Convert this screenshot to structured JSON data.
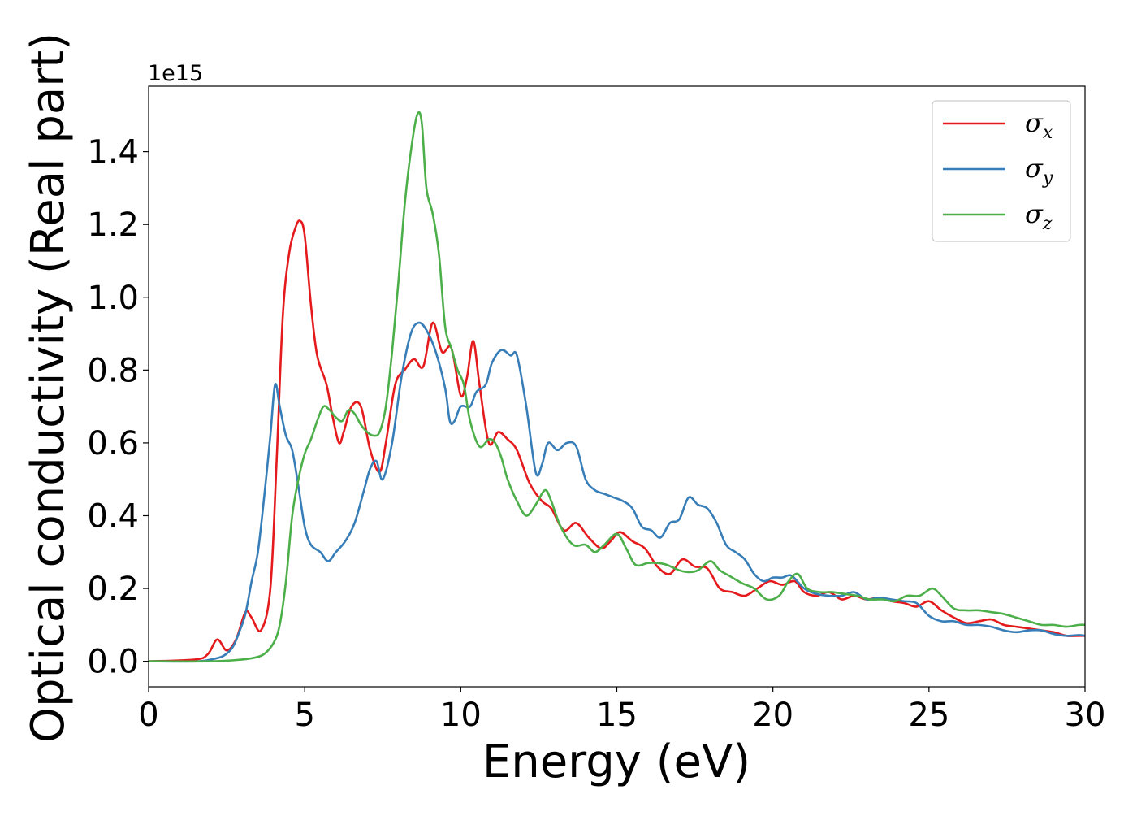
{
  "chart_data": {
    "type": "line",
    "xlabel": "Energy (eV)",
    "ylabel": "Optical conductivity (Real part)",
    "y_offset_label": "1e15",
    "xlim": [
      0,
      30
    ],
    "ylim": [
      -0.07,
      1.58
    ],
    "x_ticks": [
      0,
      5,
      10,
      15,
      20,
      25,
      30
    ],
    "y_ticks": [
      0.0,
      0.2,
      0.4,
      0.6,
      0.8,
      1.0,
      1.2,
      1.4
    ],
    "y_tick_labels": [
      "0.0",
      "0.2",
      "0.4",
      "0.6",
      "0.8",
      "1.0",
      "1.2",
      "1.4"
    ],
    "grid": false,
    "legend_position": "top-right",
    "series": [
      {
        "name": "σx",
        "symbol": "σ",
        "subscript": "x",
        "color": "#e41a1c",
        "x": [
          0,
          1.5,
          1.9,
          2.2,
          2.5,
          2.8,
          3.1,
          3.3,
          3.6,
          3.9,
          4.1,
          4.3,
          4.5,
          4.7,
          4.85,
          5.0,
          5.2,
          5.4,
          5.7,
          5.9,
          6.1,
          6.25,
          6.5,
          6.8,
          7.1,
          7.4,
          7.6,
          7.9,
          8.2,
          8.5,
          8.8,
          9.1,
          9.4,
          9.7,
          10.0,
          10.2,
          10.4,
          10.6,
          10.9,
          11.2,
          11.5,
          11.8,
          12.2,
          12.6,
          12.9,
          13.3,
          13.7,
          14.1,
          14.5,
          14.8,
          15.1,
          15.5,
          15.9,
          16.3,
          16.7,
          17.1,
          17.5,
          17.9,
          18.3,
          18.7,
          19.1,
          19.5,
          19.9,
          20.3,
          20.7,
          21.0,
          21.4,
          21.8,
          22.2,
          22.6,
          23.0,
          23.4,
          23.8,
          24.2,
          24.6,
          25.0,
          25.4,
          25.8,
          26.2,
          26.6,
          27.0,
          27.4,
          27.8,
          28.2,
          28.6,
          29.0,
          29.4,
          29.8,
          30.0
        ],
        "values": [
          0.0,
          0.005,
          0.02,
          0.06,
          0.03,
          0.06,
          0.135,
          0.12,
          0.085,
          0.2,
          0.55,
          0.95,
          1.12,
          1.19,
          1.21,
          1.17,
          0.98,
          0.84,
          0.76,
          0.67,
          0.6,
          0.63,
          0.7,
          0.7,
          0.58,
          0.52,
          0.6,
          0.76,
          0.8,
          0.83,
          0.81,
          0.93,
          0.85,
          0.86,
          0.73,
          0.78,
          0.88,
          0.76,
          0.6,
          0.63,
          0.61,
          0.58,
          0.49,
          0.44,
          0.42,
          0.36,
          0.38,
          0.34,
          0.31,
          0.33,
          0.355,
          0.33,
          0.31,
          0.26,
          0.24,
          0.28,
          0.26,
          0.255,
          0.2,
          0.19,
          0.18,
          0.2,
          0.22,
          0.21,
          0.22,
          0.19,
          0.18,
          0.19,
          0.17,
          0.18,
          0.17,
          0.175,
          0.165,
          0.16,
          0.15,
          0.165,
          0.14,
          0.12,
          0.105,
          0.11,
          0.115,
          0.1,
          0.095,
          0.09,
          0.085,
          0.08,
          0.07,
          0.07,
          0.07
        ]
      },
      {
        "name": "σy",
        "symbol": "σ",
        "subscript": "y",
        "color": "#377eb8",
        "x": [
          0,
          1.5,
          2.0,
          2.4,
          2.7,
          2.9,
          3.1,
          3.3,
          3.5,
          3.7,
          3.9,
          4.05,
          4.2,
          4.4,
          4.6,
          4.8,
          5.0,
          5.2,
          5.5,
          5.75,
          6.0,
          6.3,
          6.6,
          6.9,
          7.1,
          7.3,
          7.5,
          7.8,
          8.1,
          8.4,
          8.65,
          8.9,
          9.2,
          9.5,
          9.65,
          9.8,
          10.0,
          10.3,
          10.5,
          10.8,
          11.0,
          11.3,
          11.6,
          11.8,
          12.1,
          12.4,
          12.6,
          12.8,
          13.1,
          13.4,
          13.7,
          14.0,
          14.3,
          14.6,
          14.9,
          15.2,
          15.5,
          15.8,
          16.1,
          16.4,
          16.7,
          17.0,
          17.3,
          17.6,
          17.9,
          18.2,
          18.5,
          18.8,
          19.1,
          19.4,
          19.7,
          20.0,
          20.3,
          20.6,
          21.0,
          21.4,
          21.8,
          22.2,
          22.6,
          23.0,
          23.4,
          23.8,
          24.2,
          24.6,
          25.0,
          25.4,
          25.8,
          26.2,
          26.6,
          27.0,
          27.4,
          27.8,
          28.2,
          28.6,
          29.0,
          29.4,
          29.8,
          30.0
        ],
        "values": [
          0.0,
          0.0,
          0.005,
          0.015,
          0.04,
          0.08,
          0.13,
          0.22,
          0.3,
          0.45,
          0.62,
          0.76,
          0.7,
          0.62,
          0.58,
          0.48,
          0.37,
          0.32,
          0.3,
          0.275,
          0.3,
          0.33,
          0.38,
          0.47,
          0.53,
          0.55,
          0.5,
          0.6,
          0.78,
          0.9,
          0.93,
          0.91,
          0.85,
          0.75,
          0.66,
          0.66,
          0.7,
          0.7,
          0.74,
          0.76,
          0.82,
          0.855,
          0.84,
          0.84,
          0.7,
          0.52,
          0.54,
          0.6,
          0.58,
          0.6,
          0.59,
          0.5,
          0.47,
          0.46,
          0.45,
          0.44,
          0.42,
          0.37,
          0.36,
          0.34,
          0.38,
          0.39,
          0.45,
          0.43,
          0.42,
          0.38,
          0.32,
          0.3,
          0.28,
          0.24,
          0.22,
          0.23,
          0.23,
          0.235,
          0.2,
          0.185,
          0.18,
          0.18,
          0.19,
          0.17,
          0.175,
          0.17,
          0.165,
          0.16,
          0.125,
          0.11,
          0.11,
          0.1,
          0.1,
          0.095,
          0.085,
          0.08,
          0.085,
          0.085,
          0.075,
          0.07,
          0.072,
          0.07
        ]
      },
      {
        "name": "σz",
        "symbol": "σ",
        "subscript": "z",
        "color": "#4daf4a",
        "x": [
          0,
          2.0,
          3.0,
          3.4,
          3.7,
          4.0,
          4.2,
          4.4,
          4.6,
          4.8,
          5.0,
          5.2,
          5.4,
          5.6,
          5.8,
          6.0,
          6.2,
          6.4,
          6.6,
          6.8,
          7.0,
          7.2,
          7.4,
          7.6,
          7.8,
          8.0,
          8.2,
          8.4,
          8.6,
          8.75,
          8.9,
          9.1,
          9.3,
          9.5,
          9.7,
          9.9,
          10.1,
          10.3,
          10.6,
          10.9,
          11.1,
          11.3,
          11.5,
          11.8,
          12.1,
          12.4,
          12.7,
          12.9,
          13.2,
          13.6,
          14.0,
          14.3,
          14.6,
          15.0,
          15.3,
          15.6,
          16.0,
          16.3,
          16.6,
          17.0,
          17.3,
          17.6,
          18.0,
          18.3,
          18.6,
          19.0,
          19.4,
          19.8,
          20.2,
          20.5,
          20.8,
          21.1,
          21.5,
          21.9,
          22.3,
          22.7,
          23.1,
          23.5,
          23.9,
          24.3,
          24.7,
          25.1,
          25.4,
          25.8,
          26.2,
          26.6,
          27.0,
          27.4,
          27.8,
          28.2,
          28.6,
          29.0,
          29.4,
          29.8,
          30.0
        ],
        "values": [
          0.0,
          0.0,
          0.005,
          0.01,
          0.02,
          0.05,
          0.1,
          0.22,
          0.4,
          0.5,
          0.57,
          0.61,
          0.66,
          0.7,
          0.69,
          0.67,
          0.66,
          0.69,
          0.68,
          0.65,
          0.63,
          0.62,
          0.63,
          0.7,
          0.85,
          1.04,
          1.25,
          1.4,
          1.5,
          1.48,
          1.3,
          1.23,
          1.12,
          0.92,
          0.86,
          0.8,
          0.76,
          0.66,
          0.59,
          0.61,
          0.6,
          0.56,
          0.5,
          0.44,
          0.4,
          0.43,
          0.47,
          0.44,
          0.37,
          0.32,
          0.32,
          0.3,
          0.32,
          0.35,
          0.31,
          0.265,
          0.27,
          0.27,
          0.265,
          0.25,
          0.245,
          0.25,
          0.275,
          0.25,
          0.235,
          0.215,
          0.2,
          0.17,
          0.18,
          0.22,
          0.24,
          0.2,
          0.19,
          0.19,
          0.185,
          0.18,
          0.17,
          0.17,
          0.165,
          0.18,
          0.18,
          0.2,
          0.18,
          0.145,
          0.14,
          0.14,
          0.135,
          0.13,
          0.12,
          0.11,
          0.1,
          0.1,
          0.095,
          0.1,
          0.1
        ]
      }
    ]
  }
}
